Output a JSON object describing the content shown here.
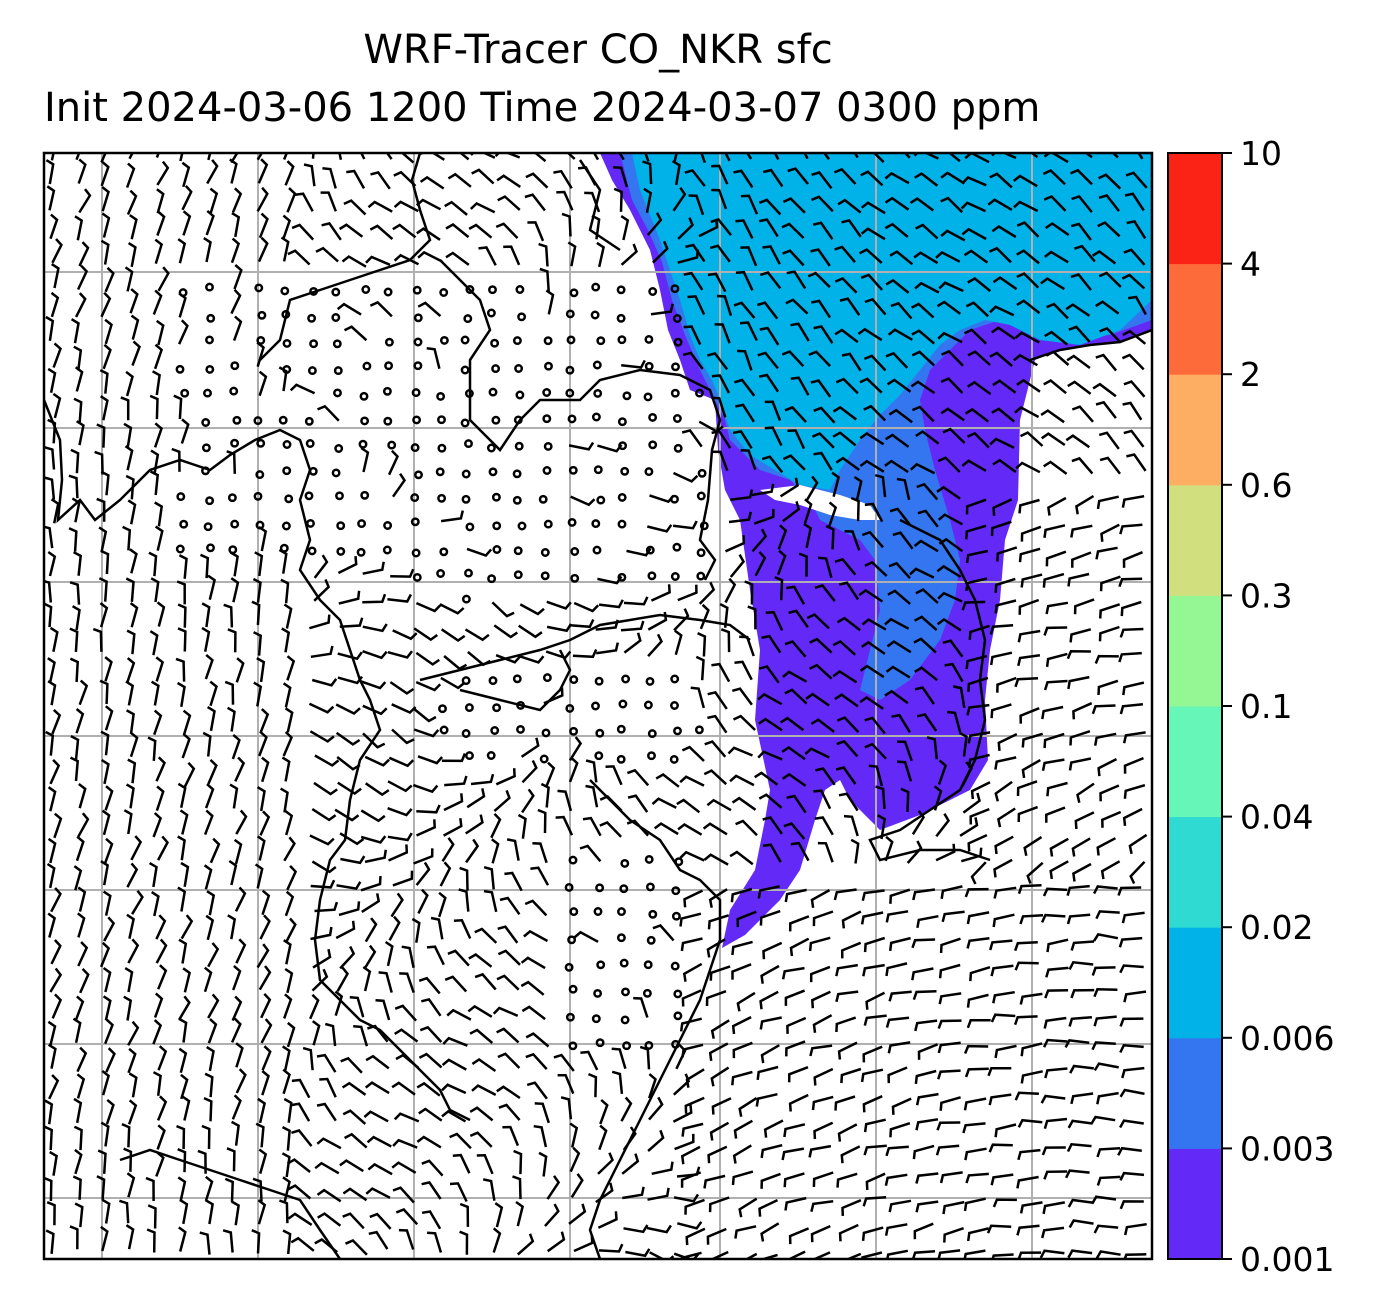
{
  "title": {
    "line1": "WRF-Tracer CO_NKR sfc",
    "line2": "Init 2024-03-06 1200 Time 2024-03-07 0300 ppm"
  },
  "colorbar": {
    "levels": [
      "0.001",
      "0.003",
      "0.006",
      "0.02",
      "0.04",
      "0.1",
      "0.3",
      "0.6",
      "2",
      "4",
      "10"
    ],
    "colors": [
      "#6329f7",
      "#3476f0",
      "#00b2e8",
      "#2edad1",
      "#66f7b8",
      "#94f793",
      "#d1df7f",
      "#fdae62",
      "#fe6b3a",
      "#fb2315"
    ]
  },
  "map": {
    "gridlines": true,
    "plume_colors": {
      "level_0.001": "#6329f7",
      "level_0.003": "#3476f0",
      "level_0.006": "#00b2e8"
    },
    "vector_style": "wind barbs",
    "coastline_color": "#000000",
    "grid_color": "#b0b0b0"
  }
}
